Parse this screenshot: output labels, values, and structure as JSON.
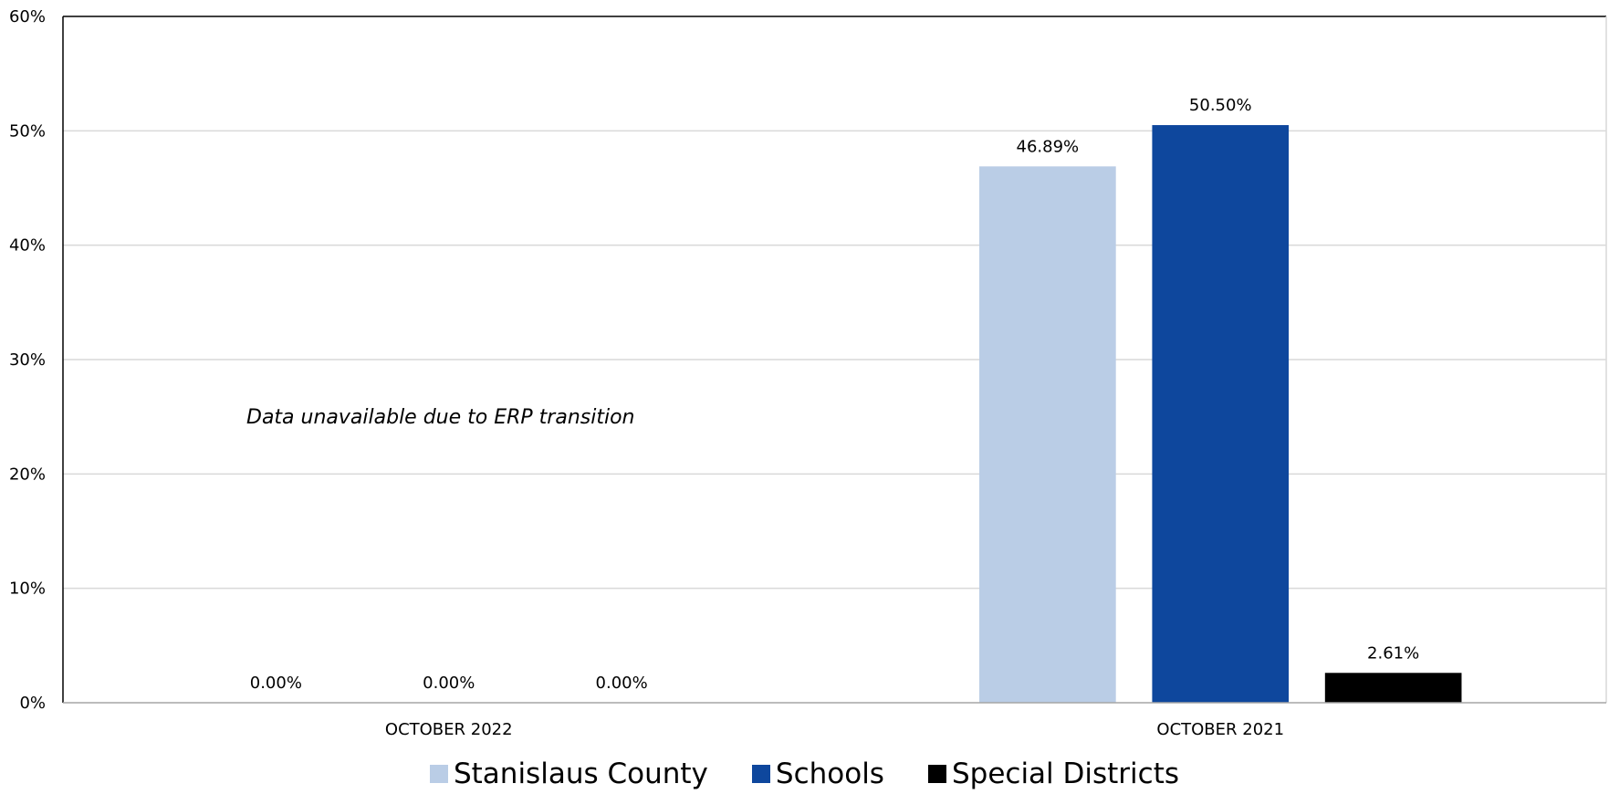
{
  "chart_data": {
    "type": "bar",
    "categories": [
      "OCTOBER 2022",
      "OCTOBER 2021"
    ],
    "series": [
      {
        "name": "Stanislaus County",
        "color": "#BACDE6",
        "values": [
          0.0,
          46.89
        ],
        "labels": [
          "0.00%",
          "46.89%"
        ]
      },
      {
        "name": "Schools",
        "color": "#0E479D",
        "values": [
          0.0,
          50.5
        ],
        "labels": [
          "0.00%",
          "50.50%"
        ]
      },
      {
        "name": "Special Districts",
        "color": "#000000",
        "values": [
          0.0,
          2.61
        ],
        "labels": [
          "0.00%",
          "2.61%"
        ]
      }
    ],
    "ylim": [
      0,
      60
    ],
    "yticks": [
      "0%",
      "10%",
      "20%",
      "30%",
      "40%",
      "50%",
      "60%"
    ],
    "grid": true,
    "legend_position": "bottom",
    "annotation": "Data unavailable due to ERP transition"
  }
}
